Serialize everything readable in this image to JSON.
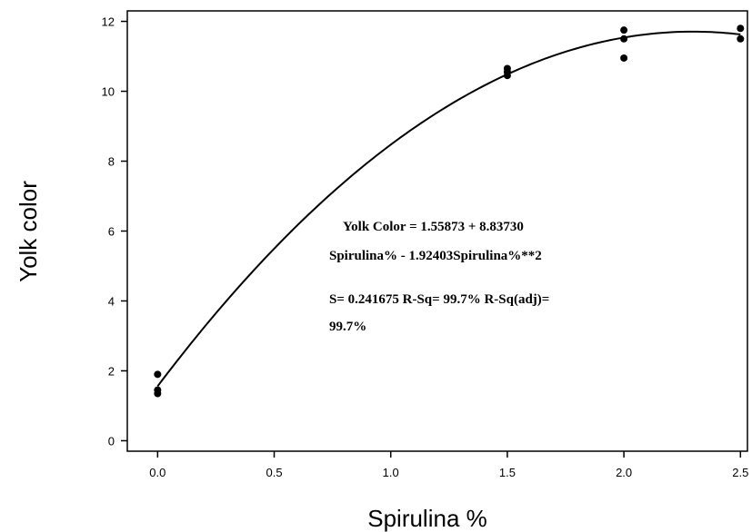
{
  "chart_data": {
    "type": "scatter",
    "xlabel": "Spirulina %",
    "ylabel": "Yolk color",
    "xlim": [
      -0.13,
      2.53
    ],
    "ylim": [
      -0.3,
      12.3
    ],
    "xticks": [
      "0.0",
      "0.5",
      "1.0",
      "1.5",
      "2.0",
      "2.5"
    ],
    "xtick_values": [
      0,
      0.5,
      1.0,
      1.5,
      2.0,
      2.5
    ],
    "yticks": [
      "0",
      "2",
      "4",
      "6",
      "8",
      "10",
      "12"
    ],
    "ytick_values": [
      0,
      2,
      4,
      6,
      8,
      10,
      12
    ],
    "grid": false,
    "points": [
      {
        "x": 0.0,
        "y": 1.9
      },
      {
        "x": 0.0,
        "y": 1.45
      },
      {
        "x": 0.0,
        "y": 1.35
      },
      {
        "x": 1.5,
        "y": 10.65
      },
      {
        "x": 1.5,
        "y": 10.55
      },
      {
        "x": 1.5,
        "y": 10.45
      },
      {
        "x": 2.0,
        "y": 11.75
      },
      {
        "x": 2.0,
        "y": 11.5
      },
      {
        "x": 2.0,
        "y": 10.95
      },
      {
        "x": 2.5,
        "y": 11.8
      },
      {
        "x": 2.5,
        "y": 11.5
      }
    ],
    "fit": {
      "type": "quadratic",
      "intercept": 1.55873,
      "b1": 8.8373,
      "b2": -1.92403,
      "x_range": [
        0,
        2.5
      ]
    },
    "annotations": [
      "Yolk Color = 1.55873 + 8.83730",
      "Spirulina% - 1.92403Spirulina%**2",
      "S= 0.241675  R-Sq= 99.7% R-Sq(adj)=",
      "99.7%"
    ]
  }
}
